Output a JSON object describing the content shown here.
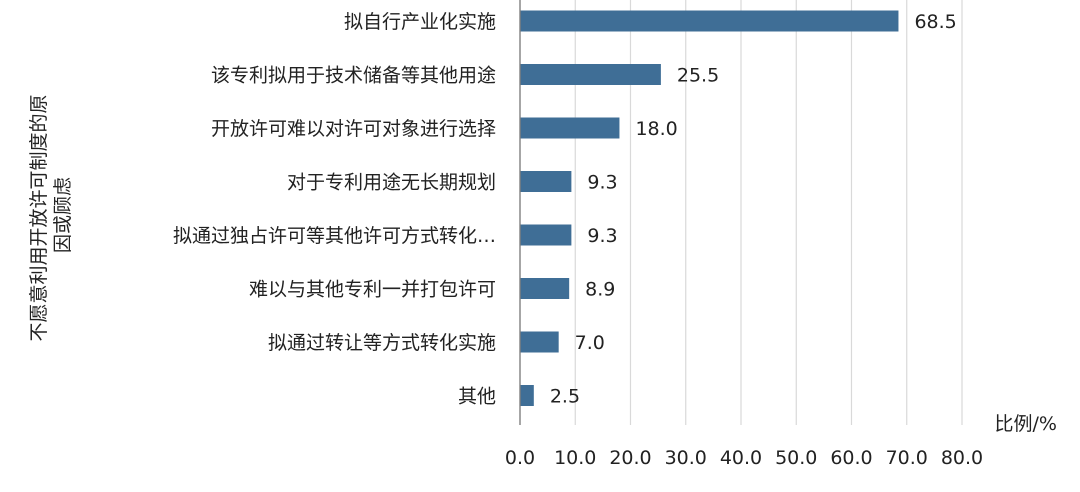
{
  "chart_data": {
    "type": "bar",
    "orientation": "horizontal",
    "categories": [
      "拟自行产业化实施",
      "该专利拟用于技术储备等其他用途",
      "开放许可难以对许可对象进行选择",
      "对于专利用途无长期规划",
      "拟通过独占许可等其他许可方式转化…",
      "难以与其他专利一并打包许可",
      "拟通过转让等方式转化实施",
      "其他"
    ],
    "values": [
      68.5,
      25.5,
      18.0,
      9.3,
      9.3,
      8.9,
      7.0,
      2.5
    ],
    "value_labels": [
      "68.5",
      "25.5",
      "18.0",
      "9.3",
      "9.3",
      "8.9",
      "7.0",
      "2.5"
    ],
    "xlabel": "比例/%",
    "ylabel_lines": [
      "不愿意利用开放许可制度的原",
      "因或顾虑"
    ],
    "xlim": [
      0,
      80
    ],
    "x_ticks": [
      "0.0",
      "10.0",
      "20.0",
      "30.0",
      "40.0",
      "50.0",
      "60.0",
      "70.0",
      "80.0"
    ],
    "grid": "vertical",
    "legend": "none",
    "bar_color": "#3f6e96"
  }
}
